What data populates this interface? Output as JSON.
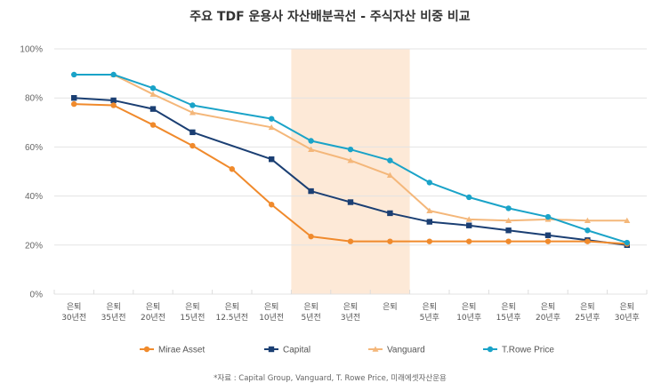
{
  "chart_data": {
    "type": "line",
    "title": "주요 TDF 운용사 자산배분곡선 - 주식자산 비중 비교",
    "xlabel": "",
    "ylabel": "",
    "ylim": [
      0,
      100
    ],
    "yticks": [
      "0%",
      "20%",
      "40%",
      "60%",
      "80%",
      "100%"
    ],
    "ytick_values": [
      0,
      20,
      40,
      60,
      80,
      100
    ],
    "grid": true,
    "categories": [
      [
        "은퇴",
        "30년전"
      ],
      [
        "은퇴",
        "35년전"
      ],
      [
        "은퇴",
        "20년전"
      ],
      [
        "은퇴",
        "15년전"
      ],
      [
        "은퇴",
        "12.5년전"
      ],
      [
        "은퇴",
        "10년전"
      ],
      [
        "은퇴",
        "5년전"
      ],
      [
        "은퇴",
        "3년전"
      ],
      [
        "은퇴"
      ],
      [
        "은퇴",
        "5년후"
      ],
      [
        "은퇴",
        "10년후"
      ],
      [
        "은퇴",
        "15년후"
      ],
      [
        "은퇴",
        "20년후"
      ],
      [
        "은퇴",
        "25년후"
      ],
      [
        "은퇴",
        "30년후"
      ]
    ],
    "highlight_band": {
      "from_category": 6,
      "to_category": 8,
      "color": "#fde9d7"
    },
    "series": [
      {
        "name": "Mirae Asset",
        "color": "#f08a2c",
        "marker": "circle",
        "values": [
          77.5,
          77,
          69,
          60.5,
          51,
          36.5,
          23.5,
          21.5,
          21.5,
          21.5,
          21.5,
          21.5,
          21.5,
          21.5,
          20.5
        ]
      },
      {
        "name": "Capital",
        "color": "#1b3f73",
        "marker": "square",
        "values": [
          80,
          79,
          75.5,
          66,
          null,
          55,
          42,
          37.5,
          33,
          29.5,
          28,
          26,
          24,
          22,
          20
        ]
      },
      {
        "name": "Vanguard",
        "color": "#f4b77a",
        "marker": "triangle",
        "values": [
          null,
          89.5,
          81.5,
          74,
          null,
          68,
          59,
          54.5,
          48.5,
          34,
          30.5,
          30,
          30.5,
          30,
          30
        ]
      },
      {
        "name": "T.Rowe Price",
        "color": "#1aa3c8",
        "marker": "circle",
        "values": [
          89.5,
          89.5,
          84,
          77,
          null,
          71.5,
          62.5,
          59,
          54.5,
          45.5,
          39.5,
          35,
          31.5,
          26,
          21
        ]
      }
    ],
    "legend_position": "bottom",
    "source": "*자료 : Capital Group, Vanguard, T. Rowe Price, 미래에셋자산운용"
  }
}
